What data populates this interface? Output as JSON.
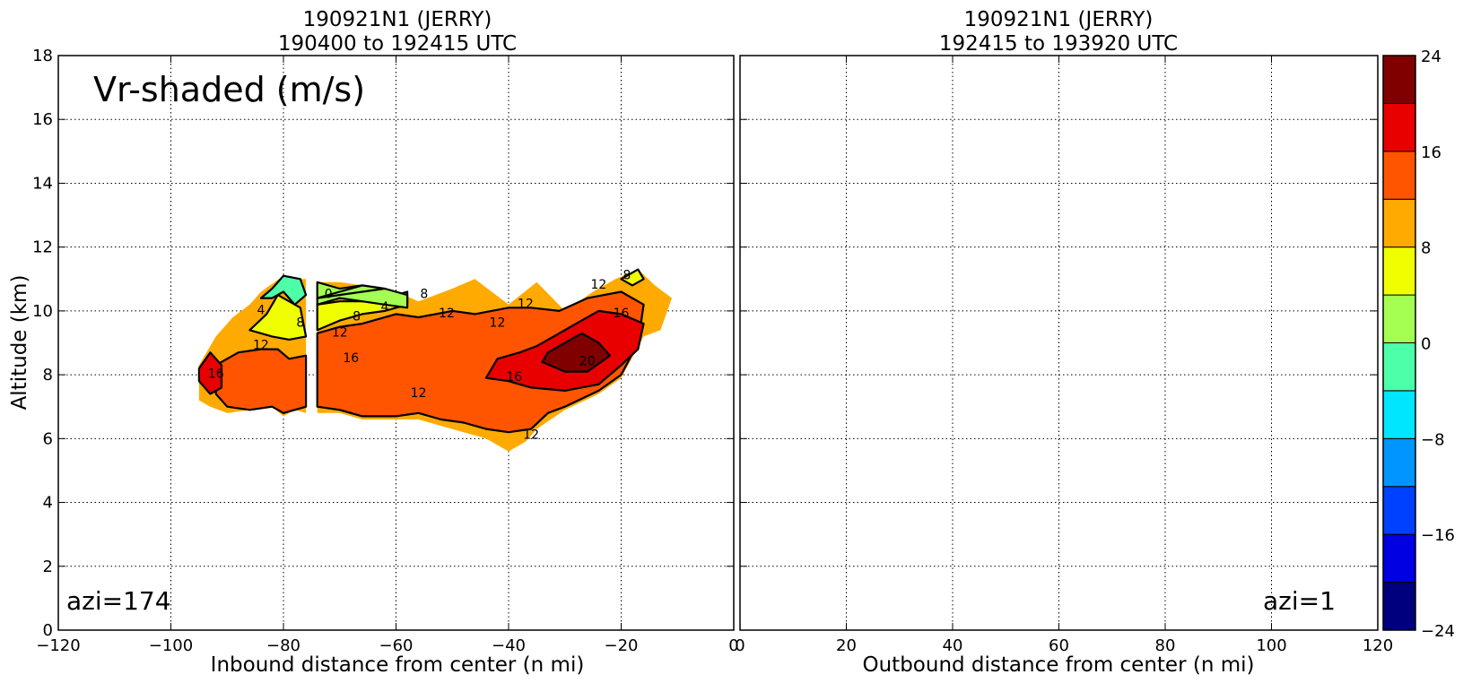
{
  "chart_data": [
    {
      "type": "heatmap",
      "title_line1": "190921N1 (JERRY)",
      "title_line2": "190400 to 192415 UTC",
      "xlabel": "Inbound distance from center (n mi)",
      "ylabel": "Altitude (km)",
      "xlim": [
        -120,
        0
      ],
      "ylim": [
        0,
        18
      ],
      "xticks": [
        "−120",
        "−100",
        "−80",
        "−60",
        "−40",
        "−20",
        "0"
      ],
      "xtick_values": [
        -120,
        -100,
        -80,
        -60,
        -40,
        -20,
        0
      ],
      "yticks": [
        "0",
        "2",
        "4",
        "6",
        "8",
        "10",
        "12",
        "14",
        "16",
        "18"
      ],
      "ytick_values": [
        0,
        2,
        4,
        6,
        8,
        10,
        12,
        14,
        16,
        18
      ],
      "grid": true,
      "panel_label": "Vr-shaded (m/s)",
      "azimuth_label": "azi=174",
      "field_regions": [
        {
          "value_bin": "8-12",
          "points": [
            [
              -95,
              7.2
            ],
            [
              -93,
              7.0
            ],
            [
              -90,
              6.8
            ],
            [
              -86,
              6.9
            ],
            [
              -82,
              7.0
            ],
            [
              -80,
              6.7
            ],
            [
              -78,
              6.9
            ],
            [
              -76,
              6.8
            ],
            [
              -76,
              11.0
            ],
            [
              -78,
              11.0
            ],
            [
              -80,
              11.1
            ],
            [
              -84,
              10.6
            ],
            [
              -86,
              10.2
            ],
            [
              -89,
              9.8
            ],
            [
              -92,
              9.2
            ],
            [
              -95,
              8.3
            ]
          ]
        },
        {
          "value_bin": "8-12",
          "points": [
            [
              -74,
              6.8
            ],
            [
              -70,
              6.8
            ],
            [
              -66,
              6.6
            ],
            [
              -60,
              6.6
            ],
            [
              -56,
              6.6
            ],
            [
              -52,
              6.4
            ],
            [
              -48,
              6.2
            ],
            [
              -44,
              6.0
            ],
            [
              -40,
              5.6
            ],
            [
              -37,
              5.9
            ],
            [
              -35,
              6.3
            ],
            [
              -30,
              6.9
            ],
            [
              -24,
              7.4
            ],
            [
              -20,
              7.9
            ],
            [
              -16,
              9.2
            ],
            [
              -13,
              9.4
            ],
            [
              -11,
              10.4
            ],
            [
              -14,
              10.8
            ],
            [
              -17,
              11.3
            ],
            [
              -21,
              11.0
            ],
            [
              -25,
              10.6
            ],
            [
              -30,
              10.0
            ],
            [
              -35,
              10.9
            ],
            [
              -40,
              10.2
            ],
            [
              -46,
              11.0
            ],
            [
              -50,
              10.7
            ],
            [
              -56,
              10.3
            ],
            [
              -60,
              10.6
            ],
            [
              -66,
              10.8
            ],
            [
              -70,
              10.9
            ],
            [
              -74,
              10.9
            ]
          ]
        },
        {
          "value_bin": "12-16",
          "points": [
            [
              -92,
              7.4
            ],
            [
              -90,
              7.0
            ],
            [
              -86,
              6.9
            ],
            [
              -82,
              7.0
            ],
            [
              -80,
              6.8
            ],
            [
              -78,
              6.9
            ],
            [
              -76,
              7.0
            ],
            [
              -76,
              8.6
            ],
            [
              -79,
              8.5
            ],
            [
              -81,
              8.8
            ],
            [
              -84,
              8.8
            ],
            [
              -88,
              8.7
            ],
            [
              -92,
              8.3
            ]
          ]
        },
        {
          "value_bin": "12-16",
          "points": [
            [
              -74,
              7.0
            ],
            [
              -70,
              6.9
            ],
            [
              -66,
              6.7
            ],
            [
              -60,
              6.7
            ],
            [
              -56,
              6.8
            ],
            [
              -52,
              6.6
            ],
            [
              -48,
              6.5
            ],
            [
              -44,
              6.3
            ],
            [
              -40,
              6.2
            ],
            [
              -36,
              6.3
            ],
            [
              -33,
              6.8
            ],
            [
              -30,
              7.0
            ],
            [
              -24,
              7.5
            ],
            [
              -20,
              8.0
            ],
            [
              -17,
              9.0
            ],
            [
              -16,
              10.2
            ],
            [
              -20,
              10.6
            ],
            [
              -26,
              10.4
            ],
            [
              -31,
              10.0
            ],
            [
              -36,
              10.1
            ],
            [
              -40,
              10.1
            ],
            [
              -46,
              9.9
            ],
            [
              -50,
              10.0
            ],
            [
              -56,
              9.8
            ],
            [
              -60,
              9.9
            ],
            [
              -66,
              9.6
            ],
            [
              -70,
              9.5
            ],
            [
              -74,
              9.3
            ]
          ]
        },
        {
          "value_bin": "16-20",
          "points": [
            [
              -95,
              7.8
            ],
            [
              -93,
              7.4
            ],
            [
              -91,
              7.6
            ],
            [
              -91,
              8.3
            ],
            [
              -93,
              8.7
            ],
            [
              -95,
              8.2
            ]
          ]
        },
        {
          "value_bin": "16-20",
          "points": [
            [
              -44,
              7.9
            ],
            [
              -40,
              7.8
            ],
            [
              -36,
              7.6
            ],
            [
              -30,
              7.5
            ],
            [
              -24,
              7.7
            ],
            [
              -20,
              8.3
            ],
            [
              -17,
              8.8
            ],
            [
              -16,
              9.6
            ],
            [
              -20,
              9.9
            ],
            [
              -24,
              10.0
            ],
            [
              -28,
              9.6
            ],
            [
              -32,
              9.2
            ],
            [
              -35,
              8.9
            ],
            [
              -38,
              8.7
            ],
            [
              -42,
              8.5
            ]
          ]
        },
        {
          "value_bin": "20-24",
          "points": [
            [
              -34,
              8.4
            ],
            [
              -30,
              8.1
            ],
            [
              -26,
              8.1
            ],
            [
              -22,
              8.6
            ],
            [
              -24,
              9.0
            ],
            [
              -27,
              9.3
            ],
            [
              -30,
              9.0
            ],
            [
              -33,
              8.7
            ]
          ]
        },
        {
          "value_bin": "4-8",
          "points": [
            [
              -86,
              9.4
            ],
            [
              -83,
              9.9
            ],
            [
              -81,
              10.5
            ],
            [
              -79,
              10.3
            ],
            [
              -77,
              10.1
            ],
            [
              -76,
              9.2
            ],
            [
              -79,
              9.1
            ],
            [
              -82,
              9.2
            ]
          ]
        },
        {
          "value_bin": "4-8",
          "points": [
            [
              -74,
              9.4
            ],
            [
              -70,
              9.7
            ],
            [
              -66,
              9.9
            ],
            [
              -62,
              10.0
            ],
            [
              -58,
              10.2
            ],
            [
              -58,
              10.6
            ],
            [
              -62,
              10.4
            ],
            [
              -66,
              10.3
            ],
            [
              -70,
              10.3
            ],
            [
              -74,
              10.2
            ]
          ]
        },
        {
          "value_bin": "4-8",
          "points": [
            [
              -20,
              11.0
            ],
            [
              -17,
              11.3
            ],
            [
              -16,
              11.0
            ],
            [
              -18,
              10.8
            ]
          ]
        },
        {
          "value_bin": "0-4",
          "points": [
            [
              -74,
              10.4
            ],
            [
              -70,
              10.6
            ],
            [
              -66,
              10.8
            ],
            [
              -62,
              10.7
            ],
            [
              -58,
              10.5
            ],
            [
              -58,
              10.1
            ],
            [
              -62,
              10.2
            ],
            [
              -66,
              10.3
            ],
            [
              -70,
              10.4
            ],
            [
              -74,
              10.2
            ],
            [
              -74,
              10.9
            ],
            [
              -70,
              10.7
            ],
            [
              -66,
              10.8
            ],
            [
              -62,
              10.7
            ]
          ]
        },
        {
          "value_bin": "-4-0",
          "points": [
            [
              -84,
              10.4
            ],
            [
              -82,
              10.7
            ],
            [
              -80,
              11.1
            ],
            [
              -77,
              11.0
            ],
            [
              -76,
              10.5
            ],
            [
              -78,
              10.2
            ],
            [
              -80,
              10.6
            ],
            [
              -82,
              10.4
            ]
          ]
        }
      ],
      "contour_labels": [
        {
          "text": "16",
          "x": -92,
          "y": 7.9
        },
        {
          "text": "12",
          "x": -84,
          "y": 8.8
        },
        {
          "text": "4",
          "x": -84,
          "y": 9.9
        },
        {
          "text": "8",
          "x": -77,
          "y": 9.5
        },
        {
          "text": "12",
          "x": -70,
          "y": 9.2
        },
        {
          "text": "16",
          "x": -68,
          "y": 8.4
        },
        {
          "text": "0",
          "x": -72,
          "y": 10.4
        },
        {
          "text": "8",
          "x": -67,
          "y": 9.7
        },
        {
          "text": "4",
          "x": -62,
          "y": 10.0
        },
        {
          "text": "8",
          "x": -55,
          "y": 10.4
        },
        {
          "text": "12",
          "x": -51,
          "y": 9.8
        },
        {
          "text": "12",
          "x": -37,
          "y": 10.1
        },
        {
          "text": "12",
          "x": -42,
          "y": 9.5
        },
        {
          "text": "12",
          "x": -56,
          "y": 7.3
        },
        {
          "text": "12",
          "x": -36,
          "y": 6.0
        },
        {
          "text": "16",
          "x": -39,
          "y": 7.8
        },
        {
          "text": "16",
          "x": -20,
          "y": 9.8
        },
        {
          "text": "20",
          "x": -26,
          "y": 8.3
        },
        {
          "text": "12",
          "x": -24,
          "y": 10.7
        },
        {
          "text": "8",
          "x": -19,
          "y": 11.0
        }
      ]
    },
    {
      "type": "heatmap",
      "title_line1": "190921N1 (JERRY)",
      "title_line2": "192415 to 193920 UTC",
      "xlabel": "Outbound distance from center (n mi)",
      "ylabel": "",
      "xlim": [
        0,
        120
      ],
      "ylim": [
        0,
        18
      ],
      "xticks": [
        "0",
        "20",
        "40",
        "60",
        "80",
        "100",
        "120"
      ],
      "xtick_values": [
        0,
        20,
        40,
        60,
        80,
        100,
        120
      ],
      "grid": true,
      "azimuth_label": "azi=1",
      "field_regions": []
    }
  ],
  "colorbar": {
    "min": -24,
    "max": 24,
    "step": 4,
    "tick_labels": [
      "24",
      "16",
      "8",
      "0",
      "−8",
      "−16",
      "−24"
    ],
    "tick_values": [
      24,
      16,
      8,
      0,
      -8,
      -16,
      -24
    ],
    "colors": [
      "#00007f",
      "#0000e0",
      "#0040ff",
      "#0095ff",
      "#00e6ff",
      "#4dffa9",
      "#a4ff52",
      "#f0ff00",
      "#ffaa00",
      "#ff5500",
      "#e80000",
      "#800000"
    ]
  },
  "bin_colors": {
    "-4-0": "#4dffa9",
    "0-4": "#a4ff52",
    "4-8": "#f0ff00",
    "8-12": "#ffaa00",
    "12-16": "#ff5500",
    "16-20": "#e80000",
    "20-24": "#800000"
  }
}
